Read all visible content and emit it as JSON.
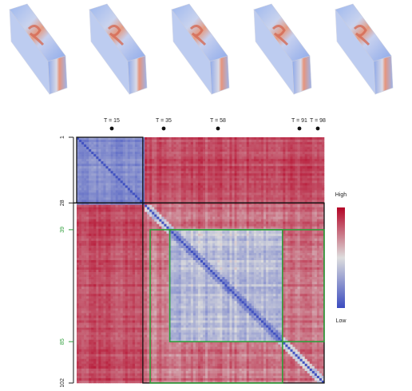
{
  "figure": {
    "time_labels": [
      "T = 15",
      "T = 35",
      "T = 58",
      "T = 91",
      "T = 98"
    ],
    "axis_ticks": [
      1,
      28,
      39,
      85,
      102
    ],
    "tick_colors": [
      "#222222",
      "#222222",
      "#2e9e3a",
      "#2e9e3a",
      "#222222"
    ],
    "colorbar": {
      "high": "High",
      "low": "Low"
    }
  }
}
